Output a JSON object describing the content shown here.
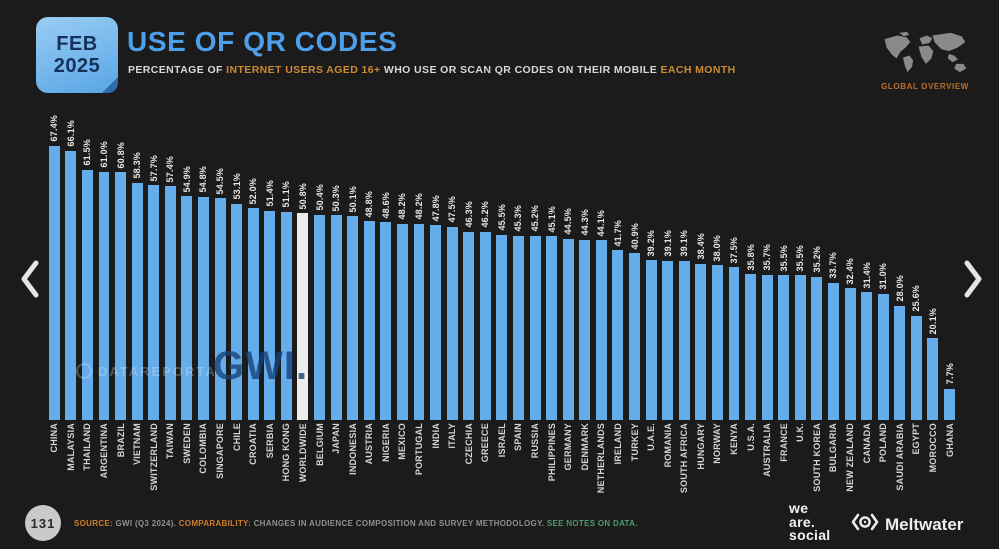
{
  "header": {
    "date_line1": "FEB",
    "date_line2": "2025",
    "title": "USE OF QR CODES",
    "subtitle_parts": [
      {
        "text": "PERCENTAGE OF ",
        "highlight": false
      },
      {
        "text": "INTERNET USERS AGED 16+",
        "highlight": true
      },
      {
        "text": " WHO USE OR SCAN QR CODES ON THEIR MOBILE ",
        "highlight": false
      },
      {
        "text": "EACH MONTH",
        "highlight": true
      }
    ],
    "region_label": "GLOBAL OVERVIEW"
  },
  "chart_data": {
    "type": "bar",
    "title": "USE OF QR CODES",
    "xlabel": "",
    "ylabel": "Percentage of internet users (%)",
    "ylim": [
      0,
      70
    ],
    "grid": false,
    "legend_position": "none",
    "unit": "%",
    "highlight_category": "WORLDWIDE",
    "categories": [
      "CHINA",
      "MALAYSIA",
      "THAILAND",
      "ARGENTINA",
      "BRAZIL",
      "VIETNAM",
      "SWITZERLAND",
      "TAIWAN",
      "SWEDEN",
      "COLOMBIA",
      "SINGAPORE",
      "CHILE",
      "CROATIA",
      "SERBIA",
      "HONG KONG",
      "WORLDWIDE",
      "BELGIUM",
      "JAPAN",
      "INDONESIA",
      "AUSTRIA",
      "NIGERIA",
      "MEXICO",
      "PORTUGAL",
      "INDIA",
      "ITALY",
      "CZECHIA",
      "GREECE",
      "ISRAEL",
      "SPAIN",
      "RUSSIA",
      "PHILIPPINES",
      "GERMANY",
      "DENMARK",
      "NETHERLANDS",
      "IRELAND",
      "TURKEY",
      "U.A.E.",
      "ROMANIA",
      "SOUTH AFRICA",
      "HUNGARY",
      "NORWAY",
      "KENYA",
      "U.S.A.",
      "AUSTRALIA",
      "FRANCE",
      "U.K.",
      "SOUTH KOREA",
      "BULGARIA",
      "NEW ZEALAND",
      "CANADA",
      "POLAND",
      "SAUDI ARABIA",
      "EGYPT",
      "MOROCCO",
      "GHANA"
    ],
    "values": [
      67.4,
      66.1,
      61.5,
      61.0,
      60.8,
      58.3,
      57.7,
      57.4,
      54.9,
      54.8,
      54.5,
      53.1,
      52.0,
      51.4,
      51.1,
      50.8,
      50.4,
      50.3,
      50.1,
      48.8,
      48.6,
      48.2,
      48.2,
      47.8,
      47.5,
      46.3,
      46.2,
      45.5,
      45.3,
      45.2,
      45.1,
      44.5,
      44.3,
      44.1,
      41.7,
      40.9,
      39.2,
      39.1,
      39.1,
      38.4,
      38.0,
      37.5,
      35.8,
      35.7,
      35.5,
      35.5,
      35.2,
      33.7,
      32.4,
      31.4,
      31.0,
      28.0,
      25.6,
      20.1,
      7.7
    ]
  },
  "watermarks": {
    "datareportal": "DATAREPORTAL",
    "gwi": "GWI."
  },
  "pagination": {
    "page_number": "131"
  },
  "footer": {
    "source_label": "SOURCE:",
    "source_text": " GWI (Q3 2024). ",
    "comparability_label": "COMPARABILITY:",
    "comparability_text": " CHANGES IN AUDIENCE COMPOSITION AND SURVEY METHODOLOGY. ",
    "notes_link": "SEE NOTES ON DATA.",
    "brand_we_line1": "we",
    "brand_we_line2": "are.",
    "brand_we_line3": "social",
    "brand_meltwater": "Meltwater"
  },
  "colors": {
    "background": "#1b1b1b",
    "bar": "#64acea",
    "bar_highlight": "#edeee9",
    "title_blue": "#4c9fe8",
    "accent_orange": "#cc8a33",
    "footer_orange": "#ce7f2b",
    "notes_green": "#4e9c6b",
    "value_label": "#e9e9e2",
    "category_label": "#d6d6d0"
  }
}
